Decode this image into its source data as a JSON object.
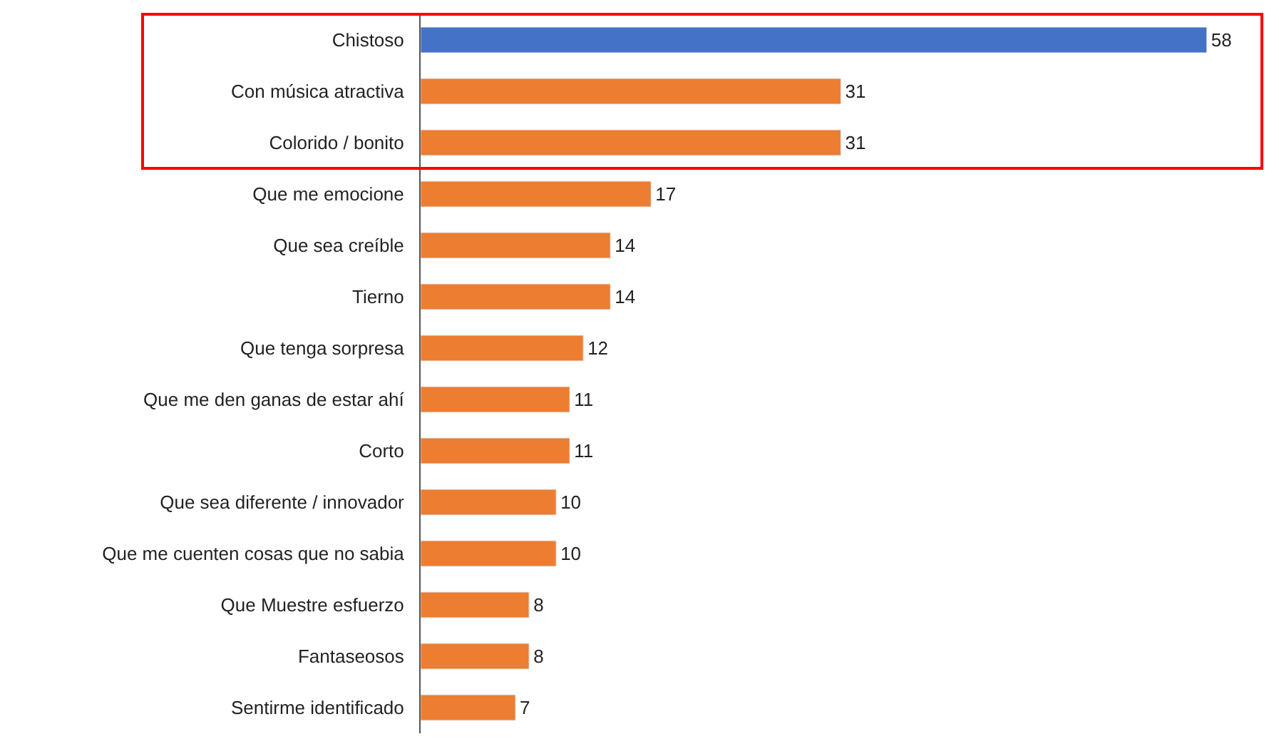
{
  "chart_data": {
    "type": "bar",
    "orientation": "horizontal",
    "categories": [
      "Chistoso",
      "Con música atractiva",
      "Colorido / bonito",
      "Que me emocione",
      "Que sea creíble",
      "Tierno",
      "Que tenga sorpresa",
      "Que me den ganas de estar ahí",
      "Corto",
      "Que sea diferente / innovador",
      "Que me cuenten cosas que no sabia",
      "Que Muestre esfuerzo",
      "Fantaseosos",
      "Sentirme identificado"
    ],
    "values": [
      58,
      31,
      31,
      17,
      14,
      14,
      12,
      11,
      11,
      10,
      10,
      8,
      8,
      7
    ],
    "colors": [
      "#4472c4",
      "#ed7d31",
      "#ed7d31",
      "#ed7d31",
      "#ed7d31",
      "#ed7d31",
      "#ed7d31",
      "#ed7d31",
      "#ed7d31",
      "#ed7d31",
      "#ed7d31",
      "#ed7d31",
      "#ed7d31",
      "#ed7d31"
    ],
    "data_labels": true
  }
}
